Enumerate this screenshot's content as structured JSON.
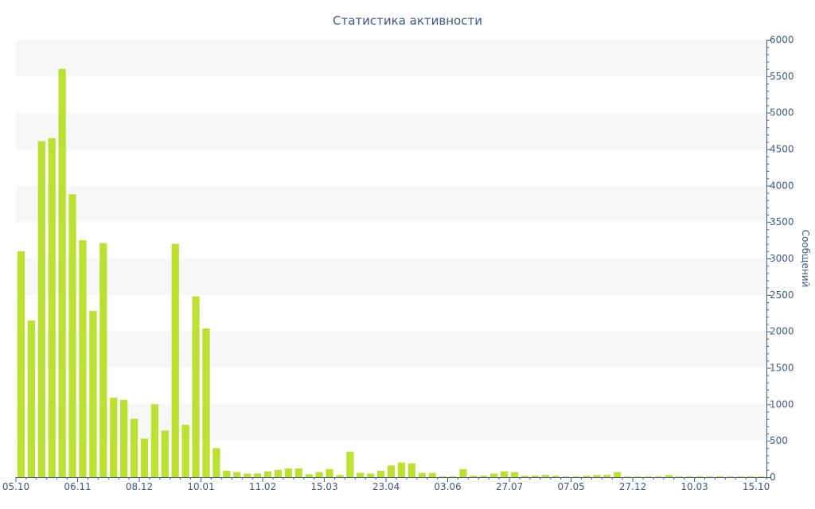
{
  "colors": {
    "bar": "#bde132",
    "band": "#f7f7f7",
    "axis": "#3d5a8c",
    "text": "#3d5a8c"
  },
  "chart_data": {
    "type": "bar",
    "title": "Статистика активности",
    "ylabel": "Сообщений",
    "xlabel": "",
    "ylim": [
      0,
      6000
    ],
    "y_ticks": [
      0,
      500,
      1000,
      1500,
      2000,
      2500,
      3000,
      3500,
      4000,
      4500,
      5000,
      5500,
      6000
    ],
    "y_axis_position": "right",
    "grid": "alternating horizontal bands",
    "x_tick_labels": [
      {
        "bar_index": 0,
        "label": "05.10"
      },
      {
        "bar_index": 6,
        "label": "06.11"
      },
      {
        "bar_index": 12,
        "label": "08.12"
      },
      {
        "bar_index": 18,
        "label": "10.01"
      },
      {
        "bar_index": 24,
        "label": "11.02"
      },
      {
        "bar_index": 30,
        "label": "15.03"
      },
      {
        "bar_index": 36,
        "label": "23.04"
      },
      {
        "bar_index": 42,
        "label": "03.06"
      },
      {
        "bar_index": 48,
        "label": "27.07"
      },
      {
        "bar_index": 54,
        "label": "07.05"
      },
      {
        "bar_index": 60,
        "label": "27.12"
      },
      {
        "bar_index": 66,
        "label": "10.03"
      },
      {
        "bar_index": 72,
        "label": "15.10"
      }
    ],
    "values": [
      3100,
      2150,
      4610,
      4650,
      5600,
      3880,
      3250,
      2280,
      3210,
      1090,
      1060,
      800,
      530,
      1000,
      640,
      3200,
      720,
      2480,
      2040,
      400,
      90,
      70,
      50,
      50,
      80,
      100,
      120,
      120,
      40,
      70,
      110,
      30,
      350,
      60,
      50,
      90,
      160,
      200,
      190,
      60,
      60,
      10,
      10,
      110,
      20,
      20,
      50,
      80,
      70,
      20,
      20,
      30,
      20,
      10,
      10,
      20,
      30,
      30,
      70,
      10,
      10,
      10,
      10,
      30,
      10,
      10,
      10,
      10,
      10,
      10,
      10,
      10,
      10
    ]
  }
}
